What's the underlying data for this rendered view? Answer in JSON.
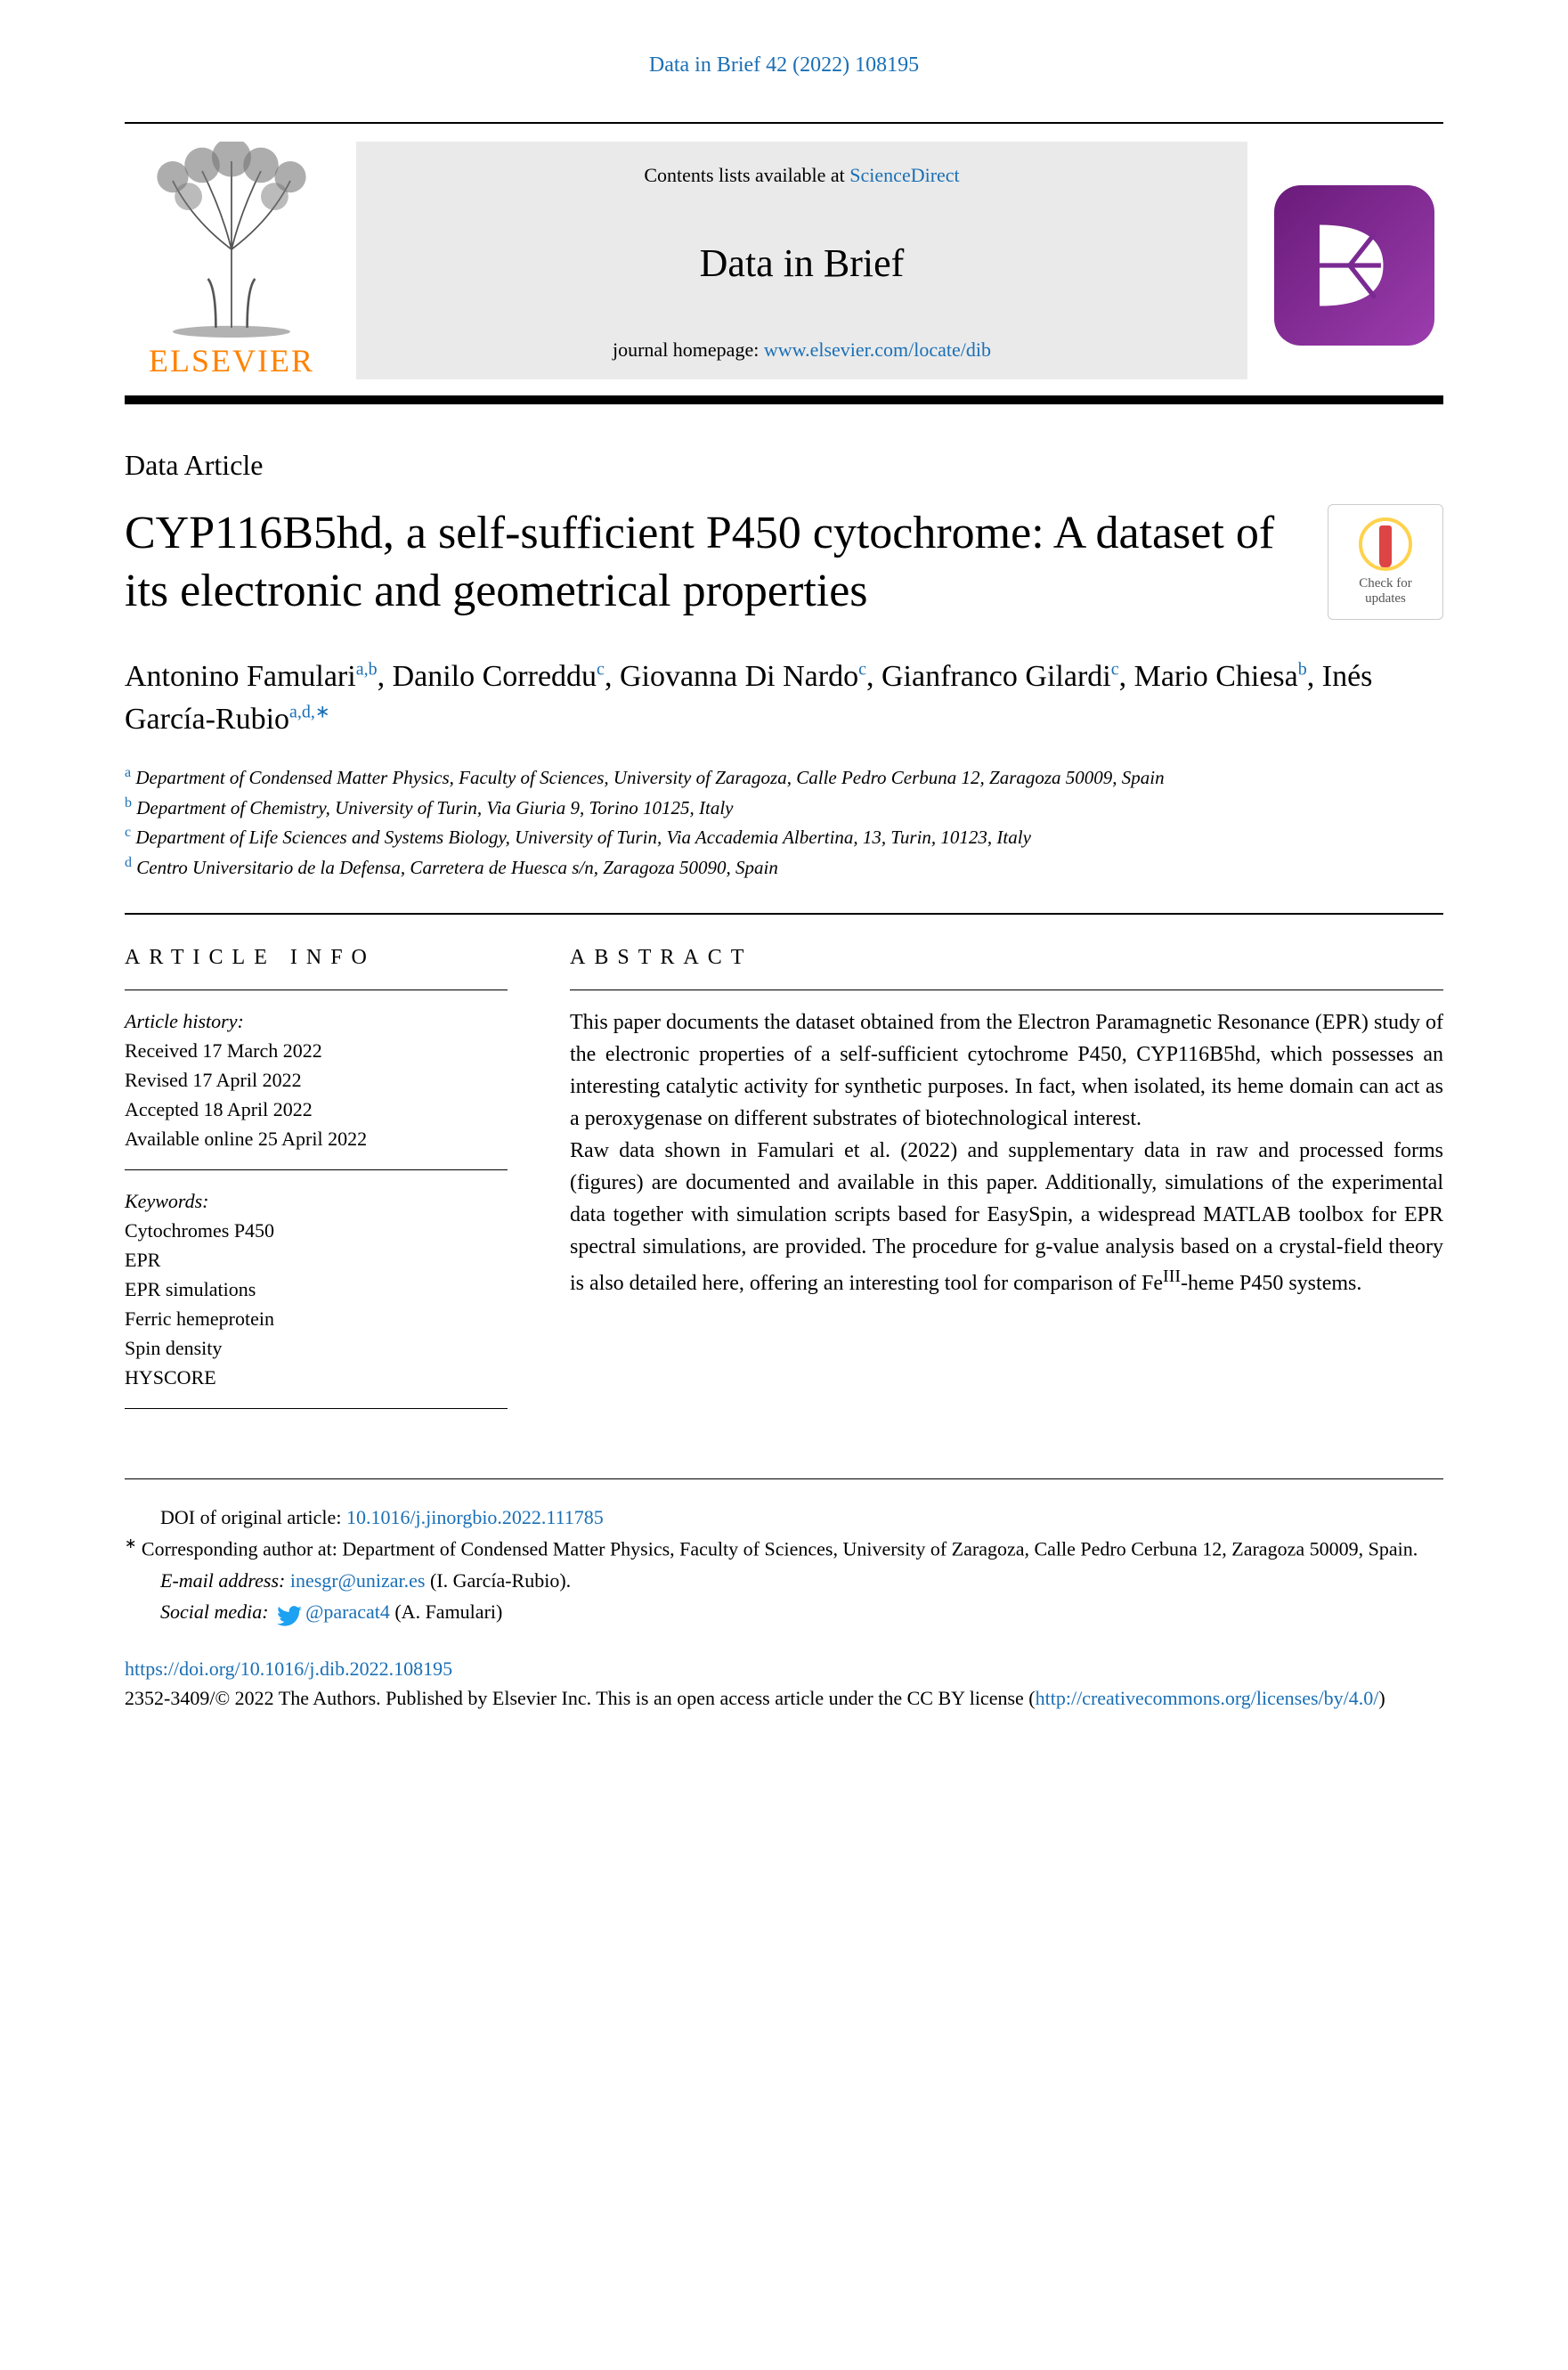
{
  "citation": "Data in Brief 42 (2022) 108195",
  "header": {
    "publisher": "ELSEVIER",
    "contents_prefix": "Contents lists available at ",
    "contents_link": "ScienceDirect",
    "journal": "Data in Brief",
    "homepage_prefix": "journal homepage: ",
    "homepage_url": "www.elsevier.com/locate/dib"
  },
  "article_type": "Data Article",
  "title": "CYP116B5hd, a self-sufficient P450 cytochrome: A dataset of its electronic and geometrical properties",
  "crossmark": {
    "line1": "Check for",
    "line2": "updates"
  },
  "authors": [
    {
      "name": "Antonino Famulari",
      "affs": "a,b"
    },
    {
      "name": "Danilo Correddu",
      "affs": "c"
    },
    {
      "name": "Giovanna Di Nardo",
      "affs": "c"
    },
    {
      "name": "Gianfranco Gilardi",
      "affs": "c"
    },
    {
      "name": "Mario Chiesa",
      "affs": "b"
    },
    {
      "name": "Inés García-Rubio",
      "affs": "a,d,∗"
    }
  ],
  "affiliations": [
    {
      "key": "a",
      "text": "Department of Condensed Matter Physics, Faculty of Sciences, University of Zaragoza, Calle Pedro Cerbuna 12, Zaragoza 50009, Spain"
    },
    {
      "key": "b",
      "text": "Department of Chemistry, University of Turin, Via Giuria 9, Torino 10125, Italy"
    },
    {
      "key": "c",
      "text": "Department of Life Sciences and Systems Biology, University of Turin, Via Accademia Albertina, 13, Turin, 10123, Italy"
    },
    {
      "key": "d",
      "text": "Centro Universitario de la Defensa, Carretera de Huesca s/n, Zaragoza 50090, Spain"
    }
  ],
  "info": {
    "heading": "article info",
    "history_label": "Article history:",
    "history": [
      "Received 17 March 2022",
      "Revised 17 April 2022",
      "Accepted 18 April 2022",
      "Available online 25 April 2022"
    ],
    "keywords_label": "Keywords:",
    "keywords": [
      "Cytochromes P450",
      "EPR",
      "EPR simulations",
      "Ferric hemeprotein",
      "Spin density",
      "HYSCORE"
    ]
  },
  "abstract": {
    "heading": "abstract",
    "p1": "This paper documents the dataset obtained from the Electron Paramagnetic Resonance (EPR) study of the electronic properties of a self-sufficient cytochrome P450, CYP116B5hd, which possesses an interesting catalytic activity for synthetic purposes. In fact, when isolated, its heme domain can act as a peroxygenase on different substrates of biotechnological interest.",
    "p2": "Raw data shown in Famulari et al. (2022) and supplementary data in raw and processed forms (figures) are documented and available in this paper. Additionally, simulations of the experimental data together with simulation scripts based for EasySpin, a widespread MATLAB toolbox for EPR spectral simulations, are provided. The procedure for g-value analysis based on a crystal-field theory is also detailed here, offering an interesting tool for comparison of FeIII-heme P450 systems."
  },
  "footer": {
    "doi_label": "DOI of original article: ",
    "doi_link": "10.1016/j.jinorgbio.2022.111785",
    "corr_marker": "∗",
    "corr_text": " Corresponding author at: Department of Condensed Matter Physics, Faculty of Sciences, University of Zaragoza, Calle Pedro Cerbuna 12, Zaragoza 50009, Spain.",
    "email_label": "E-mail address: ",
    "email": "inesgr@unizar.es",
    "email_person": " (I. García-Rubio).",
    "social_label": "Social media: ",
    "social_handle": "@paracat4",
    "social_person": " (A. Famulari)"
  },
  "license": {
    "doi_url": "https://doi.org/10.1016/j.dib.2022.108195",
    "text": "2352-3409/© 2022 The Authors. Published by Elsevier Inc. This is an open access article under the CC BY license (",
    "cc_url": "http://creativecommons.org/licenses/by/4.0/",
    "close": ")"
  },
  "colors": {
    "link": "#1a6fb5",
    "elsevier": "#ff8200",
    "dib_bg": "#7a2a92"
  }
}
